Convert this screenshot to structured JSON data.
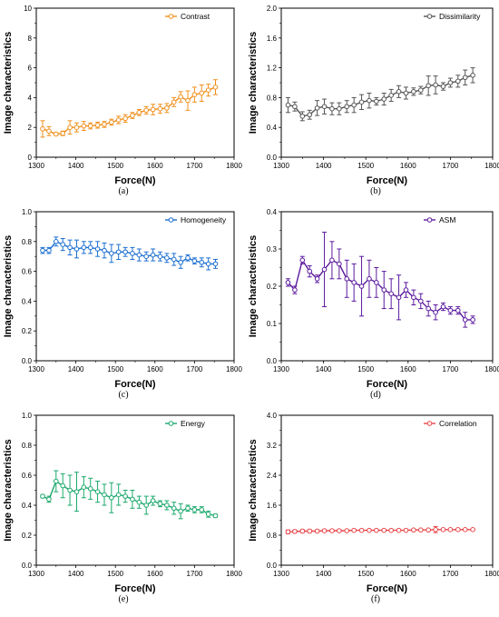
{
  "chart_data": [
    {
      "type": "line",
      "caption": "(a)",
      "xlabel": "Force(N)",
      "ylabel": "Image characteristics",
      "xlim": [
        1300,
        1800
      ],
      "ylim": [
        0,
        10
      ],
      "xticks": [
        1300,
        1400,
        1500,
        1600,
        1700,
        1800
      ],
      "yticks": [
        0,
        2,
        4,
        6,
        8,
        10
      ],
      "legend": "top-right",
      "grid": false,
      "series": [
        {
          "name": "Contrast",
          "color": "#f0901e",
          "x": [
            1316,
            1332,
            1350,
            1367,
            1385,
            1402,
            1420,
            1437,
            1455,
            1472,
            1490,
            1508,
            1525,
            1543,
            1560,
            1578,
            1595,
            1613,
            1630,
            1648,
            1665,
            1683,
            1700,
            1718,
            1735,
            1753
          ],
          "y": [
            1.9,
            1.75,
            1.55,
            1.6,
            2.0,
            2.0,
            2.1,
            2.1,
            2.15,
            2.2,
            2.35,
            2.5,
            2.6,
            2.8,
            3.0,
            3.15,
            3.2,
            3.25,
            3.3,
            3.7,
            4.05,
            3.8,
            4.2,
            4.3,
            4.5,
            4.7
          ],
          "err": [
            0.55,
            0.3,
            0.1,
            0.15,
            0.45,
            0.3,
            0.3,
            0.2,
            0.2,
            0.2,
            0.2,
            0.25,
            0.25,
            0.2,
            0.2,
            0.25,
            0.35,
            0.3,
            0.3,
            0.3,
            0.35,
            0.65,
            0.5,
            0.55,
            0.4,
            0.5
          ]
        }
      ]
    },
    {
      "type": "line",
      "caption": "(b)",
      "xlabel": "Force(N)",
      "ylabel": "Image characteristics",
      "xlim": [
        1300,
        1800
      ],
      "ylim": [
        0,
        2.0
      ],
      "xticks": [
        1300,
        1400,
        1500,
        1600,
        1700,
        1800
      ],
      "yticks": [
        0.0,
        0.4,
        0.8,
        1.2,
        1.6,
        2.0
      ],
      "legend": "top-right",
      "grid": false,
      "series": [
        {
          "name": "Dissimilarity",
          "color": "#555555",
          "x": [
            1316,
            1332,
            1350,
            1367,
            1385,
            1402,
            1420,
            1437,
            1455,
            1472,
            1490,
            1508,
            1525,
            1543,
            1560,
            1578,
            1595,
            1613,
            1630,
            1648,
            1665,
            1683,
            1700,
            1718,
            1735,
            1753
          ],
          "y": [
            0.7,
            0.68,
            0.55,
            0.57,
            0.66,
            0.68,
            0.65,
            0.65,
            0.68,
            0.7,
            0.74,
            0.76,
            0.75,
            0.78,
            0.83,
            0.88,
            0.86,
            0.88,
            0.9,
            0.96,
            0.97,
            0.95,
            1.0,
            1.02,
            1.07,
            1.1
          ],
          "err": [
            0.1,
            0.06,
            0.06,
            0.06,
            0.1,
            0.1,
            0.08,
            0.08,
            0.08,
            0.1,
            0.1,
            0.1,
            0.05,
            0.08,
            0.08,
            0.08,
            0.08,
            0.05,
            0.05,
            0.13,
            0.12,
            0.05,
            0.06,
            0.08,
            0.1,
            0.1
          ]
        }
      ]
    },
    {
      "type": "line",
      "caption": "(c)",
      "xlabel": "Force(N)",
      "ylabel": "Image characteristics",
      "xlim": [
        1300,
        1800
      ],
      "ylim": [
        0,
        1.0
      ],
      "xticks": [
        1300,
        1400,
        1500,
        1600,
        1700,
        1800
      ],
      "yticks": [
        0.0,
        0.2,
        0.4,
        0.6,
        0.8,
        1.0
      ],
      "legend": "top-right",
      "grid": false,
      "series": [
        {
          "name": "Homogeneity",
          "color": "#1c6fd1",
          "x": [
            1316,
            1332,
            1350,
            1367,
            1385,
            1402,
            1420,
            1437,
            1455,
            1472,
            1490,
            1508,
            1525,
            1543,
            1560,
            1578,
            1595,
            1613,
            1630,
            1648,
            1665,
            1683,
            1700,
            1718,
            1735,
            1753
          ],
          "y": [
            0.74,
            0.74,
            0.8,
            0.78,
            0.76,
            0.75,
            0.76,
            0.76,
            0.75,
            0.74,
            0.72,
            0.73,
            0.73,
            0.72,
            0.71,
            0.7,
            0.71,
            0.7,
            0.69,
            0.68,
            0.66,
            0.69,
            0.67,
            0.66,
            0.65,
            0.65
          ],
          "err": [
            0.02,
            0.02,
            0.03,
            0.04,
            0.05,
            0.06,
            0.04,
            0.04,
            0.05,
            0.05,
            0.06,
            0.05,
            0.03,
            0.04,
            0.04,
            0.03,
            0.04,
            0.03,
            0.03,
            0.04,
            0.04,
            0.02,
            0.02,
            0.03,
            0.04,
            0.03
          ]
        }
      ]
    },
    {
      "type": "line",
      "caption": "(d)",
      "xlabel": "Force(N)",
      "ylabel": "Image characteristics",
      "xlim": [
        1300,
        1800
      ],
      "ylim": [
        0,
        0.4
      ],
      "xticks": [
        1300,
        1400,
        1500,
        1600,
        1700,
        1800
      ],
      "yticks": [
        0.0,
        0.1,
        0.2,
        0.3,
        0.4
      ],
      "legend": "top-right",
      "grid": false,
      "series": [
        {
          "name": "ASM",
          "color": "#5b1a9e",
          "x": [
            1316,
            1332,
            1350,
            1367,
            1385,
            1402,
            1420,
            1437,
            1455,
            1472,
            1490,
            1508,
            1525,
            1543,
            1560,
            1578,
            1595,
            1613,
            1630,
            1648,
            1665,
            1683,
            1700,
            1718,
            1735,
            1753
          ],
          "y": [
            0.21,
            0.19,
            0.27,
            0.24,
            0.22,
            0.245,
            0.27,
            0.26,
            0.22,
            0.21,
            0.2,
            0.22,
            0.21,
            0.19,
            0.18,
            0.17,
            0.19,
            0.17,
            0.16,
            0.14,
            0.13,
            0.145,
            0.135,
            0.135,
            0.11,
            0.11
          ],
          "err": [
            0.01,
            0.01,
            0.01,
            0.015,
            0.01,
            0.1,
            0.05,
            0.04,
            0.05,
            0.05,
            0.08,
            0.05,
            0.04,
            0.05,
            0.04,
            0.06,
            0.02,
            0.02,
            0.02,
            0.02,
            0.02,
            0.01,
            0.01,
            0.01,
            0.02,
            0.01
          ]
        }
      ]
    },
    {
      "type": "line",
      "caption": "(e)",
      "xlabel": "Force(N)",
      "ylabel": "Image characteristics",
      "xlim": [
        1300,
        1800
      ],
      "ylim": [
        0,
        1.0
      ],
      "xticks": [
        1300,
        1400,
        1500,
        1600,
        1700,
        1800
      ],
      "yticks": [
        0.0,
        0.2,
        0.4,
        0.6,
        0.8,
        1.0
      ],
      "legend": "top-right",
      "grid": false,
      "series": [
        {
          "name": "Energy",
          "color": "#1aa86b",
          "x": [
            1316,
            1332,
            1350,
            1367,
            1385,
            1402,
            1420,
            1437,
            1455,
            1472,
            1490,
            1508,
            1525,
            1543,
            1560,
            1578,
            1595,
            1613,
            1630,
            1648,
            1665,
            1683,
            1700,
            1718,
            1735,
            1753
          ],
          "y": [
            0.46,
            0.44,
            0.56,
            0.53,
            0.5,
            0.49,
            0.52,
            0.51,
            0.49,
            0.47,
            0.45,
            0.47,
            0.46,
            0.44,
            0.42,
            0.4,
            0.43,
            0.41,
            0.4,
            0.38,
            0.36,
            0.38,
            0.37,
            0.37,
            0.34,
            0.33
          ],
          "err": [
            0.01,
            0.02,
            0.07,
            0.08,
            0.1,
            0.13,
            0.07,
            0.07,
            0.07,
            0.07,
            0.1,
            0.07,
            0.04,
            0.06,
            0.04,
            0.06,
            0.03,
            0.02,
            0.03,
            0.04,
            0.05,
            0.02,
            0.02,
            0.02,
            0.02,
            0.01
          ]
        }
      ]
    },
    {
      "type": "line",
      "caption": "(f)",
      "xlabel": "Force(N)",
      "ylabel": "Image characteristics",
      "xlim": [
        1300,
        1800
      ],
      "ylim": [
        0,
        4.0
      ],
      "xticks": [
        1300,
        1400,
        1500,
        1600,
        1700,
        1800
      ],
      "yticks": [
        0.0,
        0.8,
        1.6,
        2.4,
        3.2,
        4.0
      ],
      "legend": "top-right",
      "grid": false,
      "series": [
        {
          "name": "Correlation",
          "color": "#e8474a",
          "x": [
            1316,
            1332,
            1350,
            1367,
            1385,
            1402,
            1420,
            1437,
            1455,
            1472,
            1490,
            1508,
            1525,
            1543,
            1560,
            1578,
            1595,
            1613,
            1630,
            1648,
            1665,
            1683,
            1700,
            1718,
            1735,
            1753
          ],
          "y": [
            0.89,
            0.9,
            0.91,
            0.91,
            0.91,
            0.92,
            0.92,
            0.92,
            0.92,
            0.93,
            0.93,
            0.93,
            0.93,
            0.93,
            0.93,
            0.93,
            0.93,
            0.94,
            0.94,
            0.94,
            0.95,
            0.95,
            0.95,
            0.95,
            0.95,
            0.95
          ],
          "err": [
            0.05,
            0.04,
            0.04,
            0.04,
            0.03,
            0.03,
            0.03,
            0.03,
            0.02,
            0.02,
            0.02,
            0.02,
            0.02,
            0.02,
            0.02,
            0.02,
            0.02,
            0.02,
            0.02,
            0.02,
            0.08,
            0.02,
            0.02,
            0.02,
            0.02,
            0.02
          ]
        }
      ]
    }
  ]
}
